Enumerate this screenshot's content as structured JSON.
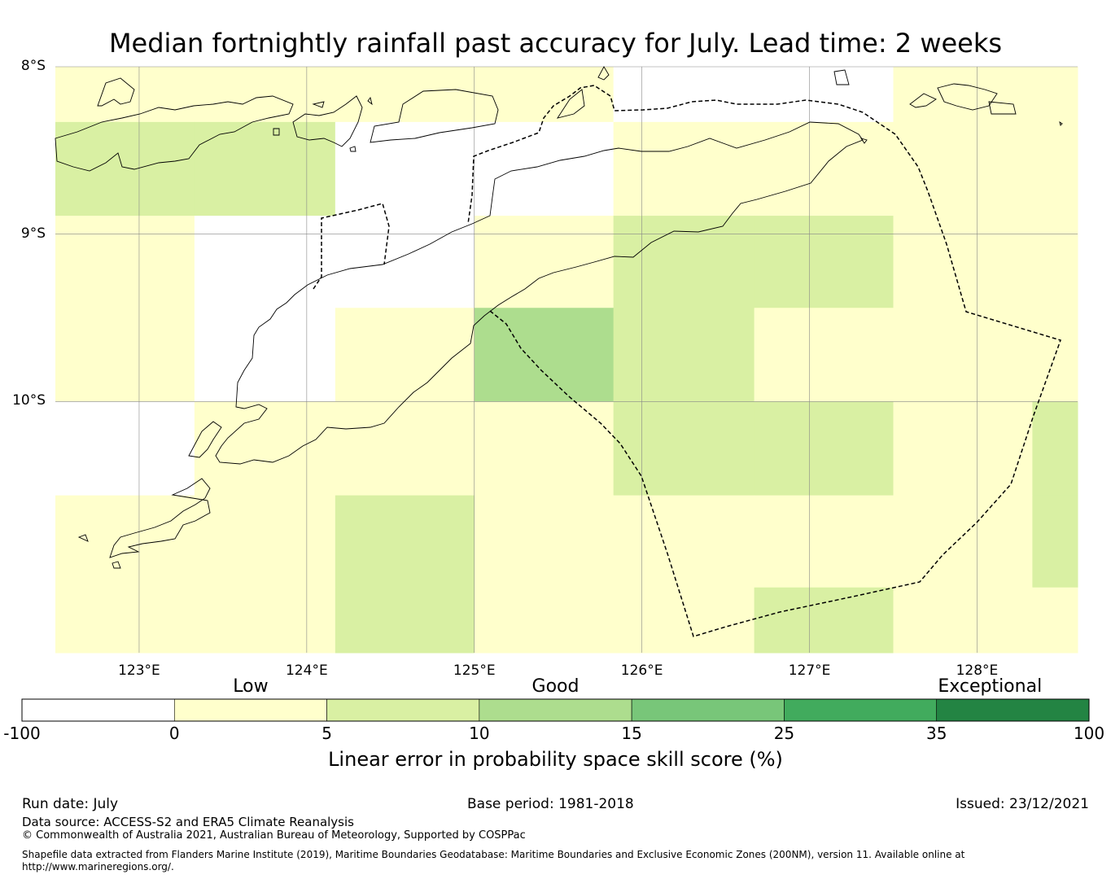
{
  "title": "Median fortnightly rainfall past accuracy for July. Lead time: 2 weeks",
  "map": {
    "lon_range": [
      122.5,
      128.6
    ],
    "lat_range": [
      -11.5,
      -8.0
    ],
    "lat_labels": [
      {
        "lat": -8,
        "label": "8°S"
      },
      {
        "lat": -9,
        "label": "9°S"
      },
      {
        "lat": -10,
        "label": "10°S"
      }
    ],
    "lon_labels": [
      {
        "lon": 123,
        "label": "123°E"
      },
      {
        "lon": 124,
        "label": "124°E"
      },
      {
        "lon": 125,
        "label": "125°E"
      },
      {
        "lon": 126,
        "label": "126°E"
      },
      {
        "lon": 127,
        "label": "127°E"
      },
      {
        "lon": 128,
        "label": "128°E"
      }
    ],
    "grid_lon_edges": [
      122.5,
      123.33,
      124.17,
      125.0,
      125.83,
      126.67,
      127.5,
      128.33,
      128.6
    ],
    "grid_lat_edges": [
      -8.0,
      -8.33,
      -8.89,
      -9.44,
      -10.0,
      -10.56,
      -11.11,
      -11.5
    ],
    "cells": [
      [
        1,
        1,
        1,
        1,
        0,
        0,
        1,
        1
      ],
      [
        2,
        2,
        0,
        0,
        1,
        1,
        1,
        1
      ],
      [
        1,
        0,
        0,
        1,
        2,
        2,
        1,
        1
      ],
      [
        1,
        0,
        1,
        3,
        2,
        1,
        1,
        1
      ],
      [
        0,
        1,
        1,
        1,
        2,
        2,
        1,
        2
      ],
      [
        1,
        1,
        2,
        1,
        1,
        1,
        1,
        2
      ],
      [
        1,
        1,
        2,
        1,
        1,
        2,
        1,
        1
      ]
    ]
  },
  "colorbar": {
    "bins": [
      {
        "color": "#ffffff"
      },
      {
        "color": "#ffffcc"
      },
      {
        "color": "#d9f0a3"
      },
      {
        "color": "#addd8e"
      },
      {
        "color": "#78c679"
      },
      {
        "color": "#41ab5d"
      },
      {
        "color": "#238443"
      }
    ],
    "ticks": [
      "-100",
      "0",
      "5",
      "10",
      "15",
      "25",
      "35",
      "100"
    ],
    "categories": [
      {
        "label": "Low",
        "bin_pos": 1.5
      },
      {
        "label": "Good",
        "bin_pos": 3.5
      },
      {
        "label": "Exceptional",
        "bin_pos": 6.35
      }
    ],
    "label": "Linear error in probability space skill score (%)"
  },
  "footer": {
    "run_date": "Run date: July",
    "base_period": "Base period: 1981-2018",
    "issued": "Issued: 23/12/2021",
    "data_source": "Data source: ACCESS-S2 and ERA5 Climate Reanalysis",
    "copyright": "© Commonwealth of Australia 2021, Australian Bureau of Meteorology, Supported by COSPPac",
    "shapefile_line1": "Shapefile data extracted from Flanders Marine Institute (2019), Maritime Boundaries Geodatabase: Maritime Boundaries and Exclusive Economic Zones (200NM), version 11. Available online at",
    "shapefile_line2": "http://www.marineregions.org/."
  }
}
